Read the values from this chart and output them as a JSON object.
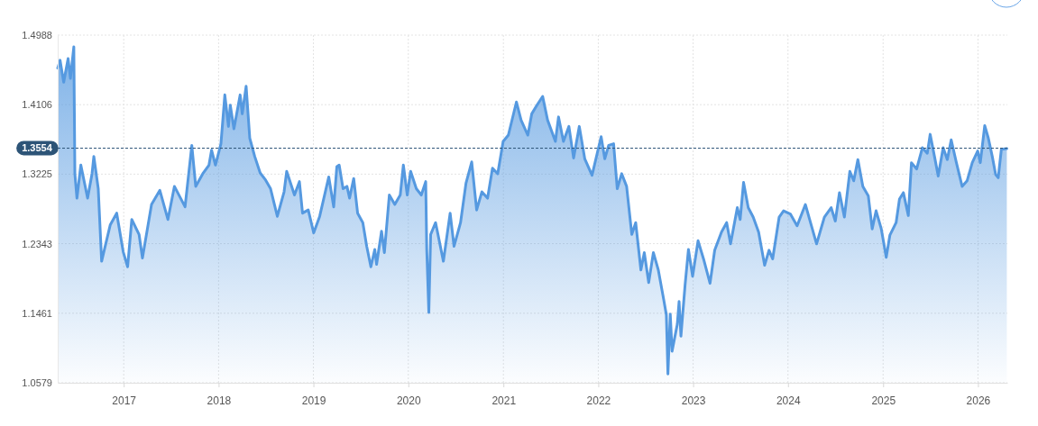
{
  "chart_data": {
    "type": "area",
    "xlim": [
      "2016-04-22",
      "2026-04-24"
    ],
    "ylim": [
      1.0579,
      1.4988
    ],
    "yticks": [
      1.0579,
      1.1461,
      1.2343,
      1.3225,
      1.4106,
      1.4988
    ],
    "xticks": [
      {
        "value": "2017-01-01",
        "label": "2017"
      },
      {
        "value": "2018-01-01",
        "label": "2018"
      },
      {
        "value": "2019-01-01",
        "label": "2019"
      },
      {
        "value": "2020-01-01",
        "label": "2020"
      },
      {
        "value": "2021-01-01",
        "label": "2021"
      },
      {
        "value": "2022-01-01",
        "label": "2022"
      },
      {
        "value": "2023-01-01",
        "label": "2023"
      },
      {
        "value": "2024-01-01",
        "label": "2024"
      },
      {
        "value": "2025-01-01",
        "label": "2025"
      },
      {
        "value": "2026-01-01",
        "label": "2026"
      }
    ],
    "grid": true,
    "ref_lines": [
      {
        "axis": "y",
        "value": 1.3554,
        "label": "1.3554",
        "color": "#2d5477",
        "line_style": "dashed"
      }
    ],
    "series": [
      {
        "color": "#5599e0",
        "x": [
          "2016-04-22",
          "2016-05-01",
          "2016-05-15",
          "2016-06-01",
          "2016-06-10",
          "2016-06-23",
          "2016-06-27",
          "2016-07-05",
          "2016-07-20",
          "2016-08-15",
          "2016-09-01",
          "2016-09-08",
          "2016-09-25",
          "2016-10-08",
          "2016-11-10",
          "2016-12-05",
          "2016-12-30",
          "2017-01-16",
          "2017-02-01",
          "2017-03-01",
          "2017-03-14",
          "2017-04-18",
          "2017-05-20",
          "2017-06-20",
          "2017-07-15",
          "2017-08-25",
          "2017-09-20",
          "2017-10-05",
          "2017-11-01",
          "2017-11-25",
          "2017-12-05",
          "2017-12-20",
          "2018-01-10",
          "2018-01-25",
          "2018-02-08",
          "2018-02-15",
          "2018-03-01",
          "2018-03-25",
          "2018-04-02",
          "2018-04-17",
          "2018-05-01",
          "2018-05-20",
          "2018-06-10",
          "2018-07-01",
          "2018-07-20",
          "2018-08-15",
          "2018-09-10",
          "2018-09-20",
          "2018-10-20",
          "2018-11-08",
          "2018-11-20",
          "2018-12-12",
          "2019-01-02",
          "2019-01-25",
          "2019-03-01",
          "2019-03-20",
          "2019-04-01",
          "2019-04-10",
          "2019-04-25",
          "2019-05-10",
          "2019-05-20",
          "2019-06-05",
          "2019-06-20",
          "2019-07-10",
          "2019-07-25",
          "2019-08-10",
          "2019-08-25",
          "2019-09-01",
          "2019-09-20",
          "2019-10-01",
          "2019-10-20",
          "2019-11-10",
          "2019-12-01",
          "2019-12-13",
          "2019-12-28",
          "2020-01-10",
          "2020-02-01",
          "2020-02-20",
          "2020-03-08",
          "2020-03-12",
          "2020-03-20",
          "2020-03-27",
          "2020-04-15",
          "2020-05-15",
          "2020-06-10",
          "2020-06-25",
          "2020-07-20",
          "2020-08-10",
          "2020-09-01",
          "2020-09-20",
          "2020-10-10",
          "2020-11-01",
          "2020-11-20",
          "2020-12-10",
          "2020-12-31",
          "2021-01-20",
          "2021-02-20",
          "2021-03-10",
          "2021-04-05",
          "2021-04-20",
          "2021-05-10",
          "2021-06-01",
          "2021-06-20",
          "2021-07-20",
          "2021-08-01",
          "2021-08-20",
          "2021-09-10",
          "2021-09-28",
          "2021-10-20",
          "2021-11-10",
          "2021-12-08",
          "2022-01-12",
          "2022-01-26",
          "2022-02-10",
          "2022-03-01",
          "2022-03-15",
          "2022-04-01",
          "2022-04-20",
          "2022-05-10",
          "2022-05-25",
          "2022-06-14",
          "2022-06-27",
          "2022-07-14",
          "2022-08-01",
          "2022-08-20",
          "2022-09-10",
          "2022-09-20",
          "2022-09-26",
          "2022-10-05",
          "2022-10-12",
          "2022-11-01",
          "2022-11-08",
          "2022-11-15",
          "2022-12-01",
          "2022-12-14",
          "2022-12-30",
          "2023-01-20",
          "2023-02-10",
          "2023-03-07",
          "2023-03-25",
          "2023-04-20",
          "2023-05-10",
          "2023-05-25",
          "2023-06-20",
          "2023-07-01",
          "2023-07-14",
          "2023-08-01",
          "2023-08-20",
          "2023-09-10",
          "2023-10-03",
          "2023-10-20",
          "2023-11-03",
          "2023-11-28",
          "2023-12-15",
          "2024-01-10",
          "2024-02-05",
          "2024-03-08",
          "2024-04-20",
          "2024-05-20",
          "2024-06-15",
          "2024-07-01",
          "2024-07-17",
          "2024-08-05",
          "2024-08-26",
          "2024-09-10",
          "2024-09-26",
          "2024-10-15",
          "2024-11-05",
          "2024-11-20",
          "2024-12-05",
          "2024-12-25",
          "2025-01-13",
          "2025-01-27",
          "2025-02-20",
          "2025-03-05",
          "2025-03-20",
          "2025-04-08",
          "2025-04-20",
          "2025-05-10",
          "2025-06-01",
          "2025-06-20",
          "2025-07-01",
          "2025-07-20",
          "2025-08-01",
          "2025-08-20",
          "2025-09-05",
          "2025-09-20",
          "2025-10-10",
          "2025-11-01",
          "2025-11-20",
          "2025-12-10",
          "2025-12-31",
          "2026-01-10",
          "2026-01-27",
          "2026-02-10",
          "2026-02-25",
          "2026-03-10",
          "2026-03-20",
          "2026-04-01",
          "2026-04-22"
        ],
        "values": [
          1.457,
          1.467,
          1.439,
          1.469,
          1.444,
          1.484,
          1.323,
          1.292,
          1.334,
          1.292,
          1.323,
          1.345,
          1.304,
          1.212,
          1.258,
          1.273,
          1.224,
          1.205,
          1.265,
          1.246,
          1.216,
          1.284,
          1.302,
          1.265,
          1.307,
          1.281,
          1.359,
          1.307,
          1.323,
          1.334,
          1.353,
          1.334,
          1.361,
          1.423,
          1.383,
          1.41,
          1.38,
          1.423,
          1.399,
          1.434,
          1.368,
          1.345,
          1.324,
          1.315,
          1.304,
          1.269,
          1.3,
          1.326,
          1.296,
          1.313,
          1.273,
          1.277,
          1.248,
          1.269,
          1.319,
          1.281,
          1.332,
          1.334,
          1.304,
          1.307,
          1.292,
          1.317,
          1.273,
          1.261,
          1.231,
          1.205,
          1.227,
          1.208,
          1.25,
          1.223,
          1.296,
          1.284,
          1.296,
          1.334,
          1.296,
          1.326,
          1.304,
          1.296,
          1.313,
          1.227,
          1.147,
          1.246,
          1.261,
          1.212,
          1.273,
          1.231,
          1.261,
          1.311,
          1.338,
          1.277,
          1.3,
          1.292,
          1.33,
          1.323,
          1.364,
          1.372,
          1.414,
          1.391,
          1.372,
          1.399,
          1.41,
          1.421,
          1.391,
          1.364,
          1.395,
          1.364,
          1.383,
          1.343,
          1.383,
          1.342,
          1.321,
          1.37,
          1.342,
          1.359,
          1.361,
          1.304,
          1.323,
          1.307,
          1.246,
          1.261,
          1.201,
          1.223,
          1.185,
          1.223,
          1.201,
          1.163,
          1.144,
          1.069,
          1.145,
          1.098,
          1.132,
          1.161,
          1.117,
          1.182,
          1.227,
          1.193,
          1.238,
          1.215,
          1.184,
          1.226,
          1.249,
          1.261,
          1.234,
          1.28,
          1.265,
          1.312,
          1.28,
          1.268,
          1.249,
          1.207,
          1.226,
          1.215,
          1.268,
          1.276,
          1.272,
          1.257,
          1.284,
          1.234,
          1.268,
          1.28,
          1.263,
          1.299,
          1.268,
          1.326,
          1.314,
          1.341,
          1.307,
          1.295,
          1.253,
          1.276,
          1.253,
          1.217,
          1.245,
          1.261,
          1.291,
          1.299,
          1.27,
          1.337,
          1.329,
          1.356,
          1.349,
          1.373,
          1.341,
          1.32,
          1.356,
          1.341,
          1.366,
          1.337,
          1.307,
          1.314,
          1.337,
          1.352,
          1.337,
          1.384,
          1.368,
          1.345,
          1.322,
          1.318,
          1.354,
          1.355
        ]
      }
    ]
  }
}
